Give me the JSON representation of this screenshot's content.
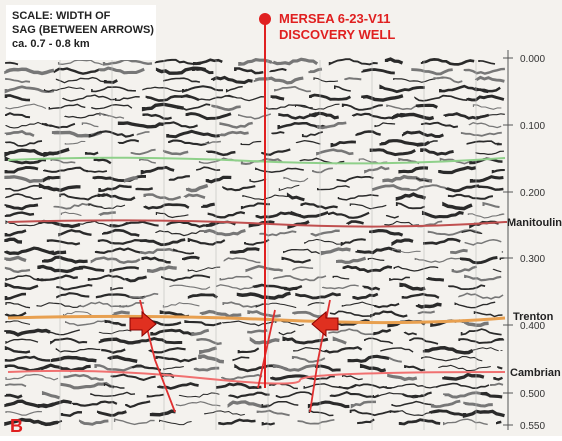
{
  "scale_note": {
    "lines": [
      "SCALE:  WIDTH OF",
      "SAG (BETWEEN ARROWS)",
      "ca. 0.7 - 0.8 km"
    ]
  },
  "well": {
    "lines": [
      "MERSEA 6-23-V11",
      "DISCOVERY WELL"
    ]
  },
  "time_axis": {
    "ticks": [
      "0.000",
      "0.100",
      "0.200",
      "0.300",
      "0.400",
      "0.500",
      "0.550"
    ]
  },
  "horizons": [
    "Manitoulin",
    "Trenton",
    "Cambrian"
  ],
  "panel_label": "B"
}
